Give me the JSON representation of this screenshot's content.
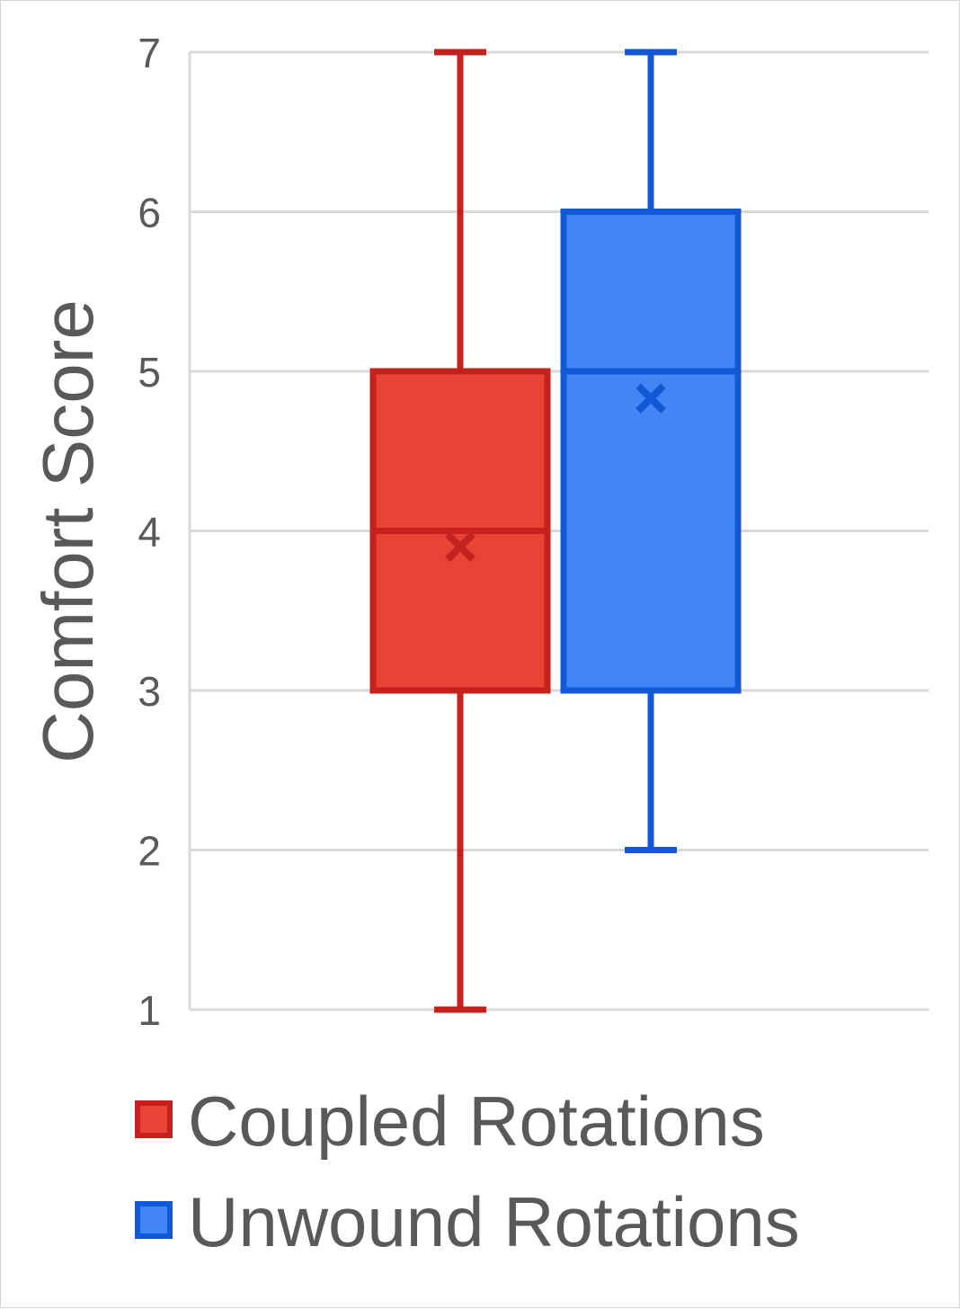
{
  "chart_data": {
    "type": "box",
    "ylabel": "Comfort Score",
    "xlabel": "",
    "ylim": [
      1,
      7
    ],
    "yticks": [
      1,
      2,
      3,
      4,
      5,
      6,
      7
    ],
    "grid": true,
    "legend_position": "bottom",
    "series": [
      {
        "name": "Coupled Rotations",
        "min": 1,
        "q1": 3,
        "median": 4,
        "q3": 5,
        "max": 7,
        "mean": 3.9,
        "fill": "#EA4335",
        "stroke": "#C5221F"
      },
      {
        "name": "Unwound Rotations",
        "min": 2,
        "q1": 3,
        "median": 5,
        "q3": 6,
        "max": 7,
        "mean": 4.83,
        "fill": "#4285F4",
        "stroke": "#1558D6"
      }
    ]
  }
}
